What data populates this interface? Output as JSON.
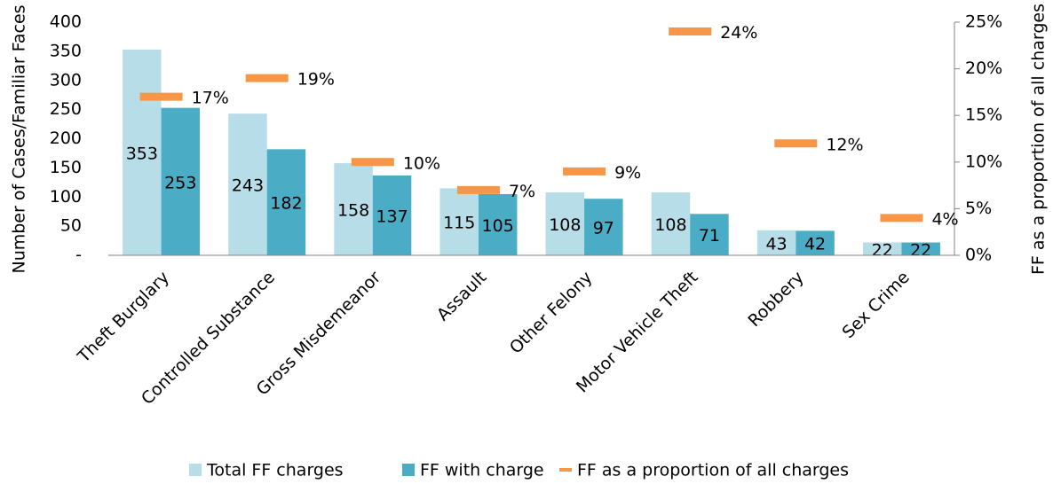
{
  "chart_data": {
    "type": "bar_marker",
    "categories": [
      "Theft Burglary",
      "Controlled Substance",
      "Gross Misdemeanor",
      "Assault",
      "Other Felony",
      "Motor Vehicle Theft",
      "Robbery",
      "Sex Crime"
    ],
    "series": [
      {
        "name": "Total FF charges",
        "color": "#b7dde8",
        "values": [
          353,
          243,
          158,
          115,
          108,
          108,
          43,
          22
        ]
      },
      {
        "name": "FF with charge",
        "color": "#4bacc6",
        "values": [
          253,
          182,
          137,
          105,
          97,
          71,
          42,
          22
        ]
      },
      {
        "name": "FF as a proportion of all charges",
        "color": "#f79646",
        "axis": "y2",
        "values": [
          17,
          19,
          10,
          7,
          9,
          24,
          12,
          4
        ],
        "value_labels": [
          "17%",
          "19%",
          "10%",
          "7%",
          "9%",
          "24%",
          "12%",
          "4%"
        ]
      }
    ],
    "ylabel": "Number of Cases/Familiar Faces",
    "y2label": "FF as a proportion of all charges",
    "ylim": [
      0,
      400
    ],
    "yticks": [
      {
        "value": 0,
        "label": "-"
      },
      50,
      100,
      150,
      200,
      250,
      300,
      350,
      400
    ],
    "y2lim": [
      0,
      25
    ],
    "y2ticks": [
      {
        "value": 0,
        "label": "0%"
      },
      {
        "value": 5,
        "label": "5%"
      },
      {
        "value": 10,
        "label": "10%"
      },
      {
        "value": 15,
        "label": "15%"
      },
      {
        "value": 20,
        "label": "20%"
      },
      {
        "value": 25,
        "label": "25%"
      }
    ],
    "legend": "bottom"
  }
}
